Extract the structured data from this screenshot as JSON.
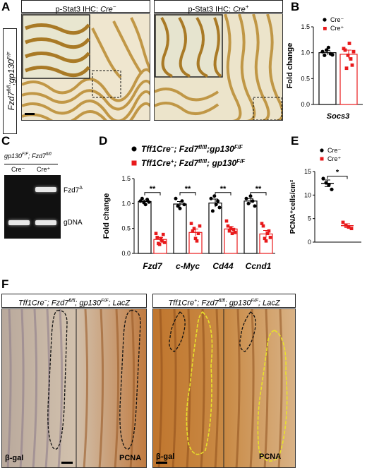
{
  "panels": {
    "A": "A",
    "B": "B",
    "C": "C",
    "D": "D",
    "E": "E",
    "F": "F"
  },
  "panelA": {
    "left_title_prefix": "p-Stat3 IHC: ",
    "left_title_geno": "Cre",
    "left_title_sup": "−",
    "right_title_prefix": "p-Stat3 IHC: ",
    "right_title_geno": "Cre",
    "right_title_sup": "+",
    "side_label_a": "Fzd7",
    "side_label_sup1": "fl/fl",
    "side_label_b": ";gp130",
    "side_label_sup2": "F/F"
  },
  "panelC": {
    "header_a": "gp130",
    "header_sup1": "F/F",
    "header_b": "; Fzd7",
    "header_sup2": "fl/fl",
    "lane1": "Cre⁻",
    "lane2": "Cre⁺",
    "band1": "Fzd7",
    "band1_sup": "Δ",
    "band2": "gDNA"
  },
  "panelF": {
    "left_header_a": "Tff1Cre",
    "left_header_s1": "−",
    "left_header_b": "; Fzd7",
    "left_header_s2": "fl/fl",
    "left_header_c": "; gp130",
    "left_header_s3": "F/F",
    "left_header_d": "; LacZ",
    "right_header_a": "Tff1Cre",
    "right_header_s1": "+",
    "right_header_b": "; Fzd7",
    "right_header_s2": "fl/fl",
    "right_header_c": "; gp130",
    "right_header_s3": "F/F",
    "right_header_d": "; LacZ",
    "bgal1": "β-gal",
    "pcna1": "PCNA",
    "bgal2": "β-gal",
    "pcna2": "PCNA"
  },
  "colors": {
    "cre_minus": "#000000",
    "cre_plus": "#e8191b",
    "brown": "#b8862e",
    "bg_tissue": "#f2ecd9"
  },
  "chart_data": [
    {
      "id": "B",
      "type": "bar",
      "ylabel": "Fold change",
      "categories": [
        "Socs3"
      ],
      "ylim": [
        0,
        1.5
      ],
      "yticks": [
        "0.0",
        "0.5",
        "1.0",
        "1.5"
      ],
      "series": [
        {
          "name": "Cre⁻",
          "values": [
            1.0
          ],
          "err": [
            0.04
          ],
          "points": [
            1.02,
            0.95,
            1.05,
            1.1,
            0.98,
            0.96
          ]
        },
        {
          "name": "Cre⁺",
          "values": [
            0.97
          ],
          "err": [
            0.08
          ],
          "points": [
            1.08,
            1.05,
            0.7,
            0.95,
            1.18,
            0.88,
            0.76,
            1.02
          ]
        }
      ],
      "legend": "top-right"
    },
    {
      "id": "D",
      "type": "bar",
      "ylabel": "Fold change",
      "categories": [
        "Fzd7",
        "c-Myc",
        "Cd44",
        "Ccnd1"
      ],
      "ylim": [
        0,
        1.5
      ],
      "yticks": [
        "0.0",
        "0.5",
        "1.0",
        "1.5"
      ],
      "significance": [
        "**",
        "**",
        "**",
        "**"
      ],
      "legend_line1_a": "Tff1Cre",
      "legend_line1_s1": "−",
      "legend_line1_b": "; Fzd7",
      "legend_line1_s2": "fl/fl",
      "legend_line1_c": ";gp130",
      "legend_line1_s3": "F/F",
      "legend_line2_a": "Tff1Cre",
      "legend_line2_s1": "+",
      "legend_line2_b": "; Fzd7",
      "legend_line2_s2": "fl/fl",
      "legend_line2_c": "; gp130",
      "legend_line2_s3": "F/F",
      "series": [
        {
          "name": "cre_minus",
          "values": [
            1.04,
            0.99,
            1.01,
            1.05
          ],
          "err": [
            0.03,
            0.05,
            0.08,
            0.05
          ],
          "points": [
            [
              1.05,
              1.1,
              1.02,
              0.98,
              1.08,
              1.03
            ],
            [
              1.1,
              0.95,
              0.9,
              1.05,
              0.98
            ],
            [
              1.1,
              0.85,
              1.15,
              0.98,
              1.05,
              0.92
            ],
            [
              1.1,
              1.0,
              1.15,
              1.05,
              0.95
            ]
          ]
        },
        {
          "name": "cre_plus",
          "values": [
            0.28,
            0.42,
            0.49,
            0.39
          ],
          "err": [
            0.04,
            0.07,
            0.05,
            0.07
          ],
          "points": [
            [
              0.4,
              0.32,
              0.2,
              0.18,
              0.3,
              0.25,
              0.38,
              0.22
            ],
            [
              0.6,
              0.45,
              0.5,
              0.3,
              0.25,
              0.4,
              0.55
            ],
            [
              0.65,
              0.55,
              0.45,
              0.5,
              0.4,
              0.48,
              0.42
            ],
            [
              0.6,
              0.55,
              0.3,
              0.25,
              0.4,
              0.45,
              0.32
            ]
          ]
        }
      ]
    },
    {
      "id": "E",
      "type": "scatter",
      "ylabel": "PCNA⁺cells/cm²",
      "ylim": [
        0,
        15
      ],
      "yticks": [
        "0",
        "5",
        "10",
        "15"
      ],
      "significance": "*",
      "series": [
        {
          "name": "Cre⁻",
          "mean": 12.5,
          "err": 0.7,
          "points": [
            13.5,
            12.6,
            12.2,
            11.2
          ]
        },
        {
          "name": "Cre⁺",
          "mean": 3.5,
          "err": 0.4,
          "points": [
            4.2,
            3.6,
            3.2,
            2.9
          ]
        }
      ]
    }
  ]
}
